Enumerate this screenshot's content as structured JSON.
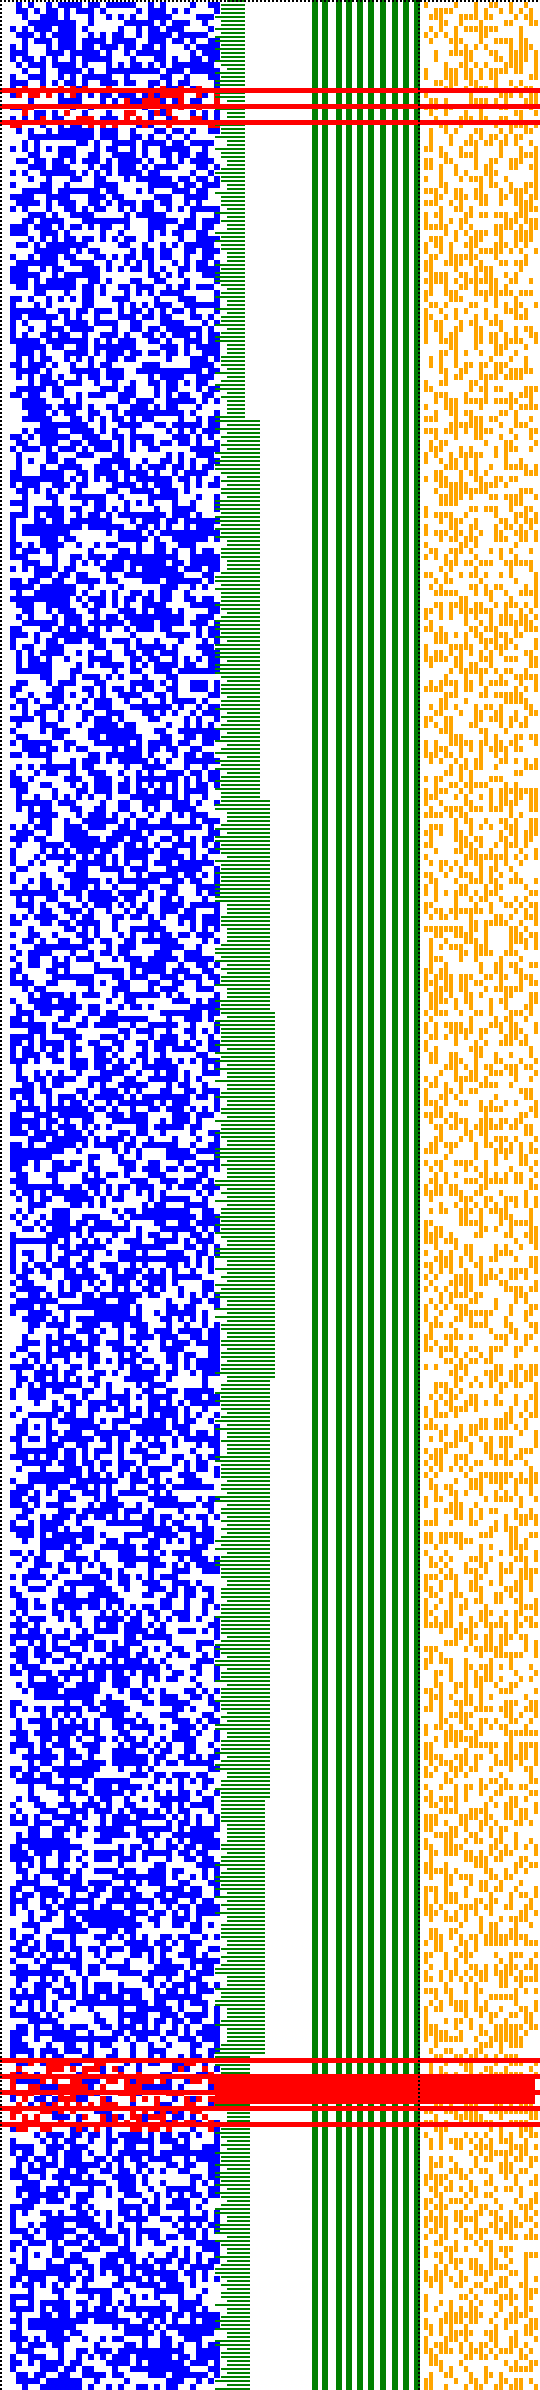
{
  "colors": {
    "background": "#ffffff",
    "bit_fill": "#0000ff",
    "bit_error": "#ff0000",
    "counter_fill": "#008000",
    "tail_fill": "#ffa500",
    "separator": "#000000"
  },
  "sections": [
    {
      "name": "random-bits",
      "color": "blue"
    },
    {
      "name": "counter-staircase",
      "color": "green"
    },
    {
      "name": "marker-columns",
      "color": "green"
    },
    {
      "name": "sparse-tail",
      "color": "orange"
    }
  ],
  "highlight_bands": [
    {
      "label": "error-band-1",
      "color": "red"
    },
    {
      "label": "error-band-2",
      "color": "red"
    }
  ],
  "borders": {
    "style": "dotted",
    "color": "black"
  }
}
